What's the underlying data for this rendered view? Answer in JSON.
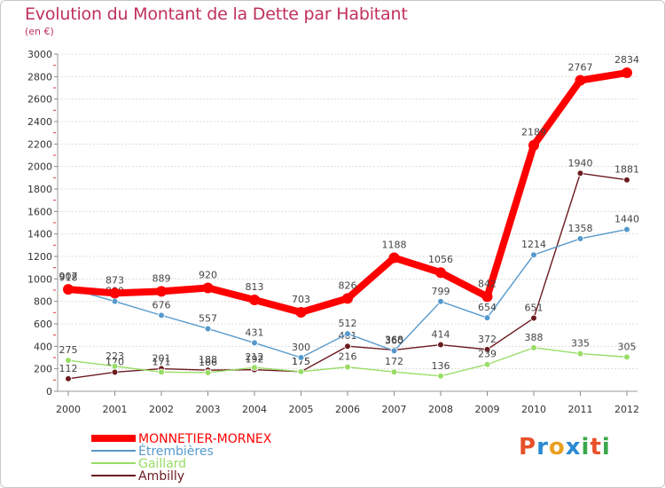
{
  "chart_data": {
    "type": "line",
    "title": "Evolution du Montant de la Dette par Habitant",
    "subtitle": "(en €)",
    "categories": [
      "2000",
      "2001",
      "2002",
      "2003",
      "2004",
      "2005",
      "2006",
      "2007",
      "2008",
      "2009",
      "2010",
      "2011",
      "2012"
    ],
    "ylim": [
      0,
      3000
    ],
    "yticks": [
      0,
      200,
      400,
      600,
      800,
      1000,
      1200,
      1400,
      1600,
      1800,
      2000,
      2200,
      2400,
      2600,
      2800,
      3000
    ],
    "grid": true,
    "series": [
      {
        "name": "Ambilly",
        "color": "#6b1a1f",
        "values": [
          112,
          170,
          201,
          188,
          192,
          175,
          401,
          368,
          414,
          372,
          651,
          1940,
          1881
        ]
      },
      {
        "name": "Gaillard",
        "color": "#99dd66",
        "values": [
          275,
          223,
          171,
          166,
          212,
          175,
          216,
          172,
          136,
          239,
          388,
          335,
          305
        ]
      },
      {
        "name": "Étrembières",
        "color": "#5599cc",
        "values": [
          918,
          800,
          676,
          557,
          431,
          300,
          512,
          360,
          799,
          654,
          1214,
          1358,
          1440
        ]
      },
      {
        "name": "MONNETIER-MORNEX",
        "color": "#ff0000",
        "values": [
          907,
          873,
          889,
          920,
          813,
          703,
          826,
          1188,
          1056,
          842,
          2189,
          2767,
          2834
        ]
      }
    ],
    "legend_order": [
      "MONNETIER-MORNEX",
      "Étrembières",
      "Gaillard",
      "Ambilly"
    ],
    "legend_position": "bottom-left"
  },
  "logo": {
    "text": "Proxiti",
    "colors": [
      "#e8502a",
      "#2a8ad0",
      "#e8a020",
      "#2a8ad0",
      "#3aa84a",
      "#e8502a",
      "#3aa84a"
    ]
  }
}
